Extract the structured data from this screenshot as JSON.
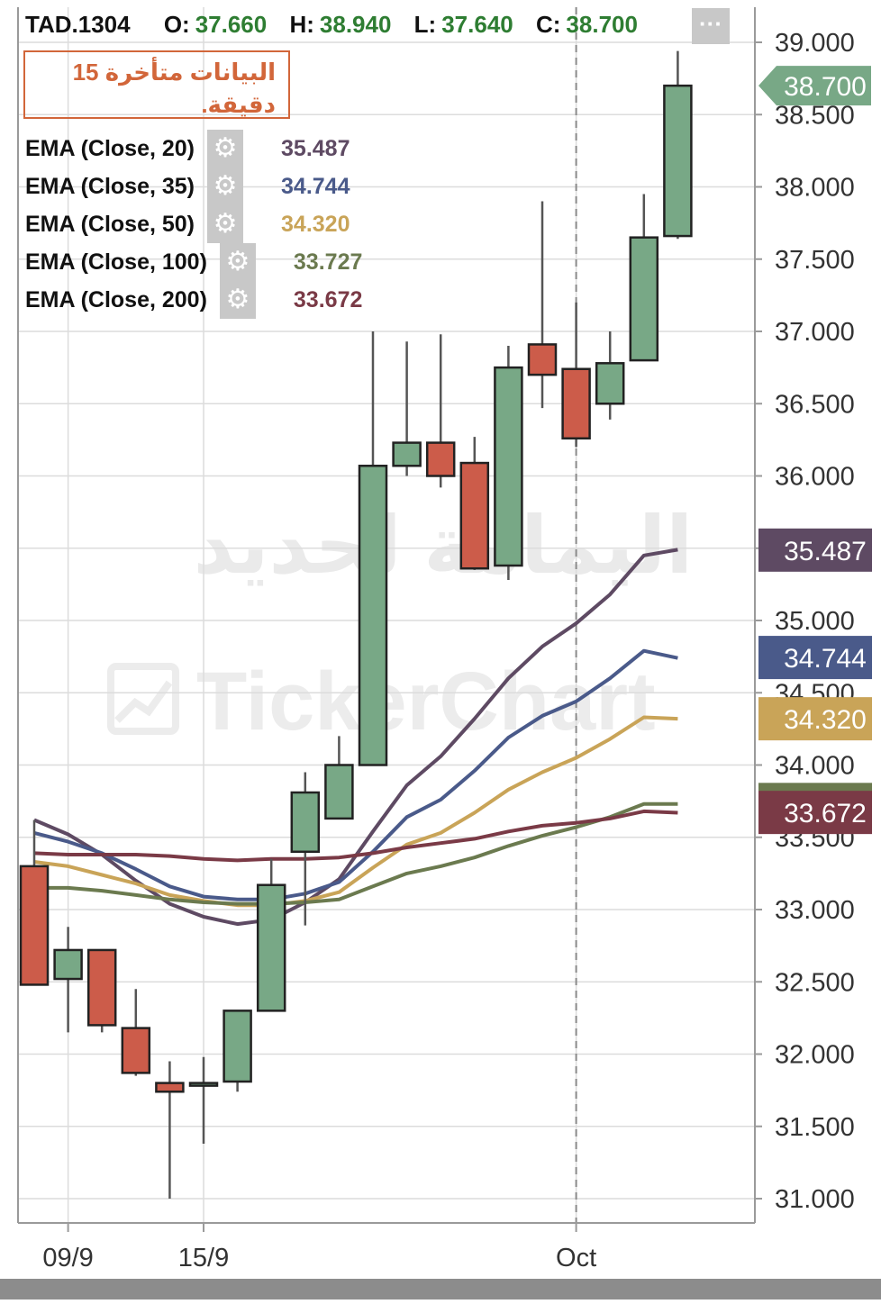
{
  "header": {
    "symbol": "TAD.1304",
    "open_label": "O:",
    "open": "37.660",
    "high_label": "H:",
    "high": "38.940",
    "low_label": "L:",
    "low": "37.640",
    "close_label": "C:",
    "close": "38.700",
    "more_icon": "ellipsis-icon",
    "more_glyph": "···"
  },
  "delay_notice": "البيانات متأخرة 15 دقيقة.",
  "indicators": [
    {
      "label": "EMA  (Close, 20)",
      "value": "35.487",
      "color": "#5e4a63",
      "settings_icon": "gear-icon"
    },
    {
      "label": "EMA  (Close, 35)",
      "value": "34.744",
      "color": "#4a5a8a",
      "settings_icon": "gear-icon"
    },
    {
      "label": "EMA  (Close, 50)",
      "value": "34.320",
      "color": "#c9a458",
      "settings_icon": "gear-icon"
    },
    {
      "label": "EMA  (Close, 100)",
      "value": "33.727",
      "color": "#6b7a4f",
      "settings_icon": "gear-icon"
    },
    {
      "label": "EMA  (Close, 200)",
      "value": "33.672",
      "color": "#7a3a46",
      "settings_icon": "gear-icon"
    }
  ],
  "gear_glyph": "⚙",
  "watermark": {
    "line1": "اليمامة لحديد",
    "line2": "TickerChart"
  },
  "chart_data": {
    "type": "candlestick",
    "ylim": [
      30.8,
      39.25
    ],
    "y_ticks": [
      "31.000",
      "31.500",
      "32.000",
      "32.500",
      "33.000",
      "33.500",
      "34.000",
      "34.500",
      "35.000",
      "35.500",
      "36.000",
      "36.500",
      "37.000",
      "37.500",
      "38.000",
      "38.500",
      "39.000"
    ],
    "x_ticks": [
      {
        "label": "09/9",
        "index": 1
      },
      {
        "label": "15/9",
        "index": 5
      },
      {
        "label": "Oct",
        "index": 16
      }
    ],
    "colors": {
      "up": "#78a886",
      "down": "#cc5c4a",
      "border": "#222222",
      "last_price_tag": "#78a886"
    },
    "candles": [
      {
        "o": 33.3,
        "h": 33.62,
        "l": 32.5,
        "c": 32.48
      },
      {
        "o": 32.52,
        "h": 32.88,
        "l": 32.15,
        "c": 32.72
      },
      {
        "o": 32.72,
        "h": 32.72,
        "l": 32.15,
        "c": 32.2
      },
      {
        "o": 32.18,
        "h": 32.45,
        "l": 31.85,
        "c": 31.87
      },
      {
        "o": 31.8,
        "h": 31.95,
        "l": 31.0,
        "c": 31.74
      },
      {
        "o": 31.79,
        "h": 31.98,
        "l": 31.38,
        "c": 31.8
      },
      {
        "o": 31.81,
        "h": 32.3,
        "l": 31.74,
        "c": 32.3
      },
      {
        "o": 32.3,
        "h": 33.35,
        "l": 32.3,
        "c": 33.17
      },
      {
        "o": 33.4,
        "h": 33.95,
        "l": 32.89,
        "c": 33.81
      },
      {
        "o": 33.63,
        "h": 34.2,
        "l": 33.63,
        "c": 34.0
      },
      {
        "o": 34.0,
        "h": 37.0,
        "l": 34.0,
        "c": 36.07
      },
      {
        "o": 36.07,
        "h": 36.93,
        "l": 36.0,
        "c": 36.23
      },
      {
        "o": 36.23,
        "h": 36.98,
        "l": 35.92,
        "c": 36.0
      },
      {
        "o": 36.09,
        "h": 36.27,
        "l": 35.35,
        "c": 35.36
      },
      {
        "o": 35.38,
        "h": 36.9,
        "l": 35.28,
        "c": 36.75
      },
      {
        "o": 36.91,
        "h": 37.9,
        "l": 36.47,
        "c": 36.7
      },
      {
        "o": 36.74,
        "h": 37.2,
        "l": 36.2,
        "c": 36.26
      },
      {
        "o": 36.5,
        "h": 37.0,
        "l": 36.39,
        "c": 36.78
      },
      {
        "o": 36.8,
        "h": 37.95,
        "l": 36.8,
        "c": 37.65
      },
      {
        "o": 37.66,
        "h": 38.94,
        "l": 37.64,
        "c": 38.7
      }
    ],
    "series": [
      {
        "name": "EMA  (Close, 20)",
        "color": "#5e4a63",
        "values": [
          33.62,
          33.52,
          33.38,
          33.2,
          33.04,
          32.95,
          32.9,
          32.93,
          33.05,
          33.21,
          33.54,
          33.86,
          34.06,
          34.32,
          34.6,
          34.82,
          34.98,
          35.18,
          35.45,
          35.49
        ]
      },
      {
        "name": "EMA  (Close, 35)",
        "color": "#4a5a8a",
        "values": [
          33.53,
          33.47,
          33.39,
          33.28,
          33.16,
          33.09,
          33.07,
          33.07,
          33.11,
          33.19,
          33.4,
          33.64,
          33.76,
          33.96,
          34.19,
          34.34,
          34.44,
          34.6,
          34.79,
          34.74
        ]
      },
      {
        "name": "EMA  (Close, 50)",
        "color": "#c9a458",
        "values": [
          33.33,
          33.3,
          33.24,
          33.18,
          33.1,
          33.06,
          33.03,
          33.03,
          33.06,
          33.12,
          33.29,
          33.45,
          33.53,
          33.67,
          33.83,
          33.95,
          34.05,
          34.18,
          34.33,
          34.32
        ]
      },
      {
        "name": "EMA  (Close, 100)",
        "color": "#6b7a4f",
        "values": [
          33.15,
          33.15,
          33.13,
          33.1,
          33.07,
          33.05,
          33.04,
          33.04,
          33.05,
          33.07,
          33.16,
          33.25,
          33.3,
          33.36,
          33.44,
          33.51,
          33.57,
          33.64,
          33.73,
          33.73
        ]
      },
      {
        "name": "EMA  (Close, 200)",
        "color": "#7a3a46",
        "values": [
          33.39,
          33.38,
          33.38,
          33.38,
          33.37,
          33.35,
          33.34,
          33.35,
          33.35,
          33.36,
          33.39,
          33.43,
          33.46,
          33.49,
          33.54,
          33.58,
          33.6,
          33.63,
          33.68,
          33.67
        ]
      }
    ],
    "price_tags": [
      {
        "value": 38.7,
        "text": "38.700",
        "color": "#78a886",
        "arrow": true
      },
      {
        "value": 35.487,
        "text": "35.487",
        "color": "#5e4a63"
      },
      {
        "value": 34.744,
        "text": "34.744",
        "color": "#4a5a8a"
      },
      {
        "value": 34.32,
        "text": "34.320",
        "color": "#c9a458"
      },
      {
        "value": 33.727,
        "text": "33.727",
        "color": "#6b7a4f"
      },
      {
        "value": 33.672,
        "text": "33.672",
        "color": "#7a3a46"
      }
    ]
  }
}
